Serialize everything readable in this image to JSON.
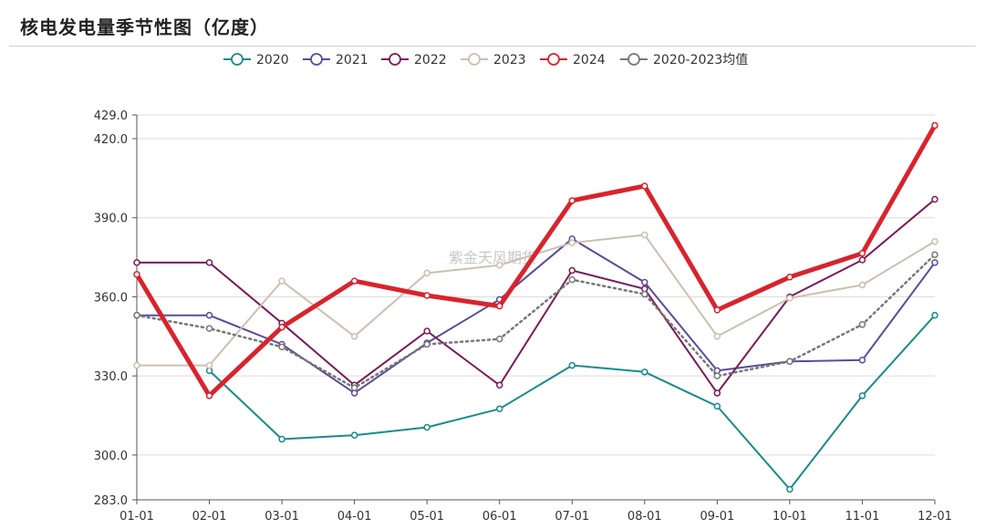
{
  "page": {
    "title": "核电发电量季节性图（亿度）",
    "watermark": "紫金天风期货"
  },
  "chart_data": {
    "type": "line",
    "title": "核电发电量季节性图（亿度）",
    "x": [
      "01-01",
      "02-01",
      "03-01",
      "04-01",
      "05-01",
      "06-01",
      "07-01",
      "08-01",
      "09-01",
      "10-01",
      "11-01",
      "12-01"
    ],
    "ylim": [
      283.0,
      429.0
    ],
    "yticks": [
      283.0,
      300.0,
      330.0,
      360.0,
      390.0,
      420.0,
      429.0
    ],
    "ytick_labels": [
      "283.0",
      "300.0",
      "330.0",
      "360.0",
      "390.0",
      "420.0",
      "429.0"
    ],
    "grid": true,
    "legend_position": "top-center",
    "series": [
      {
        "name": "2020",
        "color": "#1a8a8a",
        "style": "solid",
        "width": 2,
        "values": [
          null,
          332,
          306,
          307.5,
          310.5,
          317.5,
          334,
          331.5,
          318.5,
          287,
          322.5,
          353
        ]
      },
      {
        "name": "2021",
        "color": "#5b4b9b",
        "style": "solid",
        "width": 2,
        "values": [
          353,
          353,
          342,
          323.5,
          342.5,
          359,
          382,
          365.5,
          332,
          335.5,
          336,
          373
        ]
      },
      {
        "name": "2022",
        "color": "#7a1a5a",
        "style": "solid",
        "width": 2,
        "values": [
          373,
          373,
          350,
          326.5,
          347,
          326.5,
          370,
          363,
          323.5,
          360,
          374,
          397
        ]
      },
      {
        "name": "2023",
        "color": "#cdbfaf",
        "style": "solid",
        "width": 2,
        "values": [
          334,
          334,
          366,
          345,
          369,
          372,
          380.5,
          383.5,
          345,
          359.5,
          364.5,
          381
        ]
      },
      {
        "name": "2024",
        "color": "#d9232c",
        "style": "solid",
        "width": 5,
        "values": [
          368.5,
          322.5,
          348.5,
          366,
          360.5,
          356.5,
          396.5,
          402,
          355,
          367.5,
          376.5,
          425
        ]
      },
      {
        "name": "2020-2023均值",
        "color": "#777777",
        "style": "dotted",
        "width": 2.5,
        "values": [
          353,
          348,
          341,
          325.5,
          342,
          344,
          366.5,
          361,
          330,
          335.5,
          349.5,
          376
        ]
      }
    ]
  }
}
